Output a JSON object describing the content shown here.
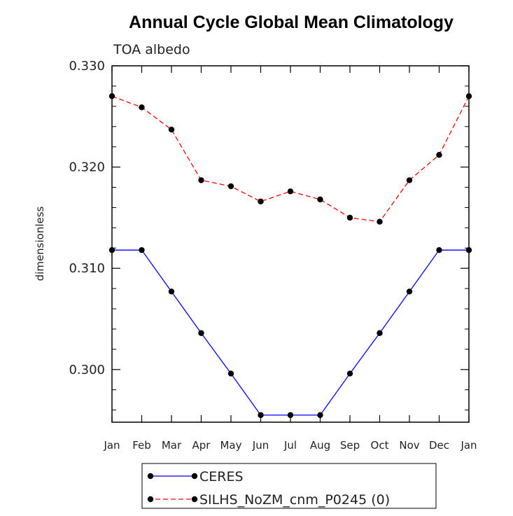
{
  "chart_data": {
    "type": "line",
    "title": "Annual Cycle Global Mean Climatology",
    "subtitle": "TOA albedo",
    "ylabel": "dimensionless",
    "xlabel": "",
    "categories": [
      "Jan",
      "Feb",
      "Mar",
      "Apr",
      "May",
      "Jun",
      "Jul",
      "Aug",
      "Sep",
      "Oct",
      "Nov",
      "Dec",
      "Jan"
    ],
    "ylim": [
      0.2948,
      0.33
    ],
    "yticks": [
      0.3,
      0.31,
      0.32,
      0.33
    ],
    "ytick_labels": [
      "0.300",
      "0.310",
      "0.320",
      "0.330"
    ],
    "series": [
      {
        "name": "CERES",
        "color": "#0000ff",
        "linestyle": "solid",
        "marker": "circle",
        "values": [
          0.3118,
          0.3118,
          0.3077,
          0.3036,
          0.2996,
          0.2955,
          0.2955,
          0.2955,
          0.2996,
          0.3036,
          0.3077,
          0.3118,
          0.3118
        ]
      },
      {
        "name": "SILHS_NoZM_cnm_P0245 (0)",
        "color": "#ff0000",
        "linestyle": "dashed",
        "marker": "circle",
        "values": [
          0.327,
          0.3259,
          0.3237,
          0.3187,
          0.3181,
          0.3166,
          0.3176,
          0.3168,
          0.315,
          0.3146,
          0.3187,
          0.3212,
          0.327
        ]
      }
    ],
    "legend_position": "bottom-center",
    "grid": false
  }
}
